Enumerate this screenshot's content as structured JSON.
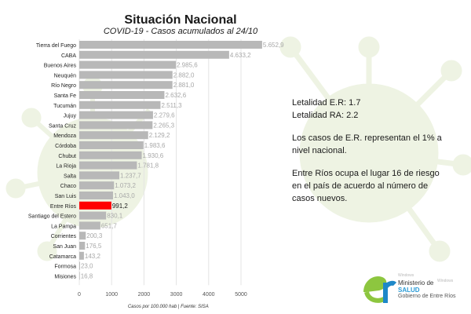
{
  "chart_data": {
    "type": "bar",
    "orientation": "horizontal",
    "title": "Situación Nacional",
    "subtitle": "COVID-19 - Casos acumulados al 24/10",
    "xlabel": "Casos por 100.000 hab | Fuente: SISA",
    "xlim": [
      0,
      5500
    ],
    "xticks": [
      0,
      1000,
      2000,
      3000,
      4000,
      5000
    ],
    "xtick_labels": [
      "0",
      "1000",
      "2000",
      "3000",
      "4000",
      "5000"
    ],
    "grid": true,
    "categories": [
      "Tierra del Fuego",
      "CABA",
      "Buenos Aires",
      "Neuquén",
      "Río Negro",
      "Santa Fe",
      "Tucumán",
      "Jujuy",
      "Santa Cruz",
      "Mendoza",
      "Córdoba",
      "Chubut",
      "La Rioja",
      "Salta",
      "Chaco",
      "San Luis",
      "Entre Ríos",
      "Santiago del Estero",
      "La Pampa",
      "Corrientes",
      "San Juan",
      "Catamarca",
      "Formosa",
      "Misiones"
    ],
    "values": [
      5652.9,
      4633.2,
      2985.6,
      2882.0,
      2881.0,
      2632.6,
      2511.3,
      2279.6,
      2265.3,
      2129.2,
      1983.6,
      1930.6,
      1781.8,
      1237.7,
      1073.2,
      1043.0,
      991.2,
      830.1,
      651.7,
      200.3,
      176.5,
      143.2,
      23.0,
      16.8
    ],
    "value_labels": [
      "5.652,9",
      "4.633,2",
      "2.985,6",
      "2.882,0",
      "2.881,0",
      "2.632,6",
      "2.511,3",
      "2.279,6",
      "2.265,3",
      "2.129,2",
      "1.983,6",
      "1.930,6",
      "1.781,8",
      "1.237,7",
      "1.073,2",
      "1.043,0",
      "991,2",
      "830,1",
      "651,7",
      "200,3",
      "176,5",
      "143,2",
      "23,0",
      "16,8"
    ],
    "highlight_index": 16,
    "colors": {
      "bar": "#b8b8b8",
      "highlight": "#ff0000",
      "grid": "#e4e4e4",
      "value_label": "#a8a8a8"
    }
  },
  "info": {
    "line1": "Letalidad E.R: 1.7",
    "line2": "Letalidad RA: 2.2",
    "line3": "Los casos de E.R. representan el 1% a nivel nacional.",
    "line4": "Entre Ríos ocupa el lugar 16 de riesgo en el país de acuerdo al número de casos nuevos."
  },
  "logo": {
    "small1": "Windows",
    "small2": "Windows",
    "ministry": "Ministerio de",
    "salud": "SALUD",
    "gobierno": "Gobierno de Entre Ríos",
    "colors": {
      "green": "#8dc63f",
      "blue": "#1e88c8"
    }
  },
  "background": {
    "virus_color": "#eef3e3"
  }
}
